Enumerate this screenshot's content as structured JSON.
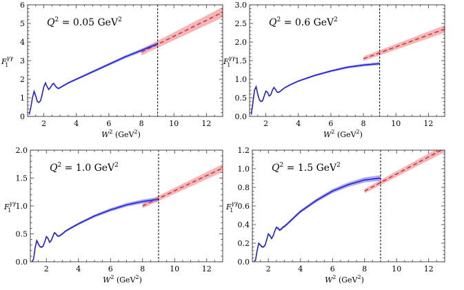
{
  "chart_data": [
    {
      "type": "line",
      "panel_label": "Q² = 0.05 GeV²",
      "label_parts": {
        "q": "Q",
        "sup": "2",
        "value": " = 0.05 GeV",
        "sup2": "2"
      },
      "xlabel": {
        "w": "W",
        "sup": "2",
        "rest": " (GeV",
        "sup2": "2",
        "close": ")"
      },
      "ylabel": {
        "f": "F",
        "sub": "1",
        "sup": "γγ"
      },
      "xlim": [
        1,
        13
      ],
      "ylim": [
        0,
        6
      ],
      "xticks": [
        2,
        4,
        6,
        8,
        10,
        12
      ],
      "yticks": [
        0,
        1,
        2,
        3,
        4,
        5,
        6
      ],
      "ytick_labels": [
        "0",
        "1",
        "2",
        "3",
        "4",
        "5",
        "6"
      ],
      "threshold_x": 9,
      "resonance_region": {
        "x": [
          1.1,
          1.2,
          1.3,
          1.4,
          1.5,
          1.6,
          1.7,
          1.8,
          1.9,
          2.0,
          2.1,
          2.2,
          2.3,
          2.4,
          2.5,
          2.6,
          2.7,
          2.8,
          2.9,
          3.0,
          3.2,
          3.5,
          4.0,
          5.0,
          6.0,
          7.0,
          8.0,
          9.0
        ],
        "y": [
          0.1,
          0.5,
          1.0,
          1.35,
          1.1,
          0.8,
          0.75,
          0.85,
          1.2,
          1.6,
          1.8,
          1.6,
          1.45,
          1.55,
          1.7,
          1.78,
          1.65,
          1.55,
          1.5,
          1.55,
          1.65,
          1.8,
          2.0,
          2.4,
          2.8,
          3.2,
          3.55,
          3.9
        ],
        "band_halfwidth": 0.1
      },
      "regge_fit": {
        "x": [
          8,
          13
        ],
        "y": [
          3.45,
          5.6
        ],
        "band_halfwidth": 0.28
      }
    },
    {
      "type": "line",
      "panel_label": "Q² = 0.6 GeV²",
      "label_parts": {
        "q": "Q",
        "sup": "2",
        "value": " = 0.6 GeV",
        "sup2": "2"
      },
      "xlabel": {
        "w": "W",
        "sup": "2",
        "rest": " (GeV",
        "sup2": "2",
        "close": ")"
      },
      "ylabel": {
        "f": "F",
        "sub": "1",
        "sup": "γγ"
      },
      "xlim": [
        1,
        13
      ],
      "ylim": [
        0,
        3
      ],
      "xticks": [
        2,
        4,
        6,
        8,
        10,
        12
      ],
      "yticks": [
        0,
        0.5,
        1,
        1.5,
        2,
        2.5,
        3
      ],
      "ytick_labels": [
        "0.0",
        "0.5",
        "1.0",
        "1.5",
        "2.0",
        "2.5",
        "3.0"
      ],
      "threshold_x": 9,
      "resonance_region": {
        "x": [
          1.1,
          1.2,
          1.3,
          1.4,
          1.5,
          1.6,
          1.7,
          1.8,
          1.9,
          2.0,
          2.1,
          2.2,
          2.3,
          2.4,
          2.5,
          2.6,
          2.7,
          2.8,
          2.9,
          3.0,
          3.2,
          3.5,
          4.0,
          5.0,
          6.0,
          7.0,
          8.0,
          9.0
        ],
        "y": [
          0.05,
          0.35,
          0.7,
          0.8,
          0.6,
          0.45,
          0.4,
          0.42,
          0.55,
          0.68,
          0.65,
          0.55,
          0.58,
          0.7,
          0.78,
          0.72,
          0.65,
          0.65,
          0.68,
          0.72,
          0.78,
          0.85,
          0.95,
          1.1,
          1.22,
          1.32,
          1.38,
          1.42
        ],
        "band_halfwidth": 0.04
      },
      "regge_fit": {
        "x": [
          8,
          13
        ],
        "y": [
          1.55,
          2.35
        ],
        "band_halfwidth": 0.1
      }
    },
    {
      "type": "line",
      "panel_label": "Q² = 1.0 GeV²",
      "label_parts": {
        "q": "Q",
        "sup": "2",
        "value": " = 1.0 GeV",
        "sup2": "2"
      },
      "xlabel": {
        "w": "W",
        "sup": "2",
        "rest": " (GeV",
        "sup2": "2",
        "close": ")"
      },
      "ylabel": {
        "f": "F",
        "sub": "1",
        "sup": "γγ"
      },
      "xlim": [
        1,
        13
      ],
      "ylim": [
        0,
        2
      ],
      "xticks": [
        2,
        4,
        6,
        8,
        10,
        12
      ],
      "yticks": [
        0,
        0.5,
        1,
        1.5,
        2
      ],
      "ytick_labels": [
        "0.0",
        "0.5",
        "1.0",
        "1.5",
        "2.0"
      ],
      "threshold_x": 9,
      "resonance_region": {
        "x": [
          1.1,
          1.2,
          1.3,
          1.4,
          1.5,
          1.6,
          1.7,
          1.8,
          1.9,
          2.0,
          2.1,
          2.2,
          2.3,
          2.4,
          2.5,
          2.6,
          2.7,
          2.8,
          2.9,
          3.0,
          3.2,
          3.5,
          4.0,
          5.0,
          6.0,
          7.0,
          8.0,
          9.0
        ],
        "y": [
          0.0,
          0.05,
          0.25,
          0.38,
          0.32,
          0.27,
          0.26,
          0.28,
          0.36,
          0.45,
          0.42,
          0.35,
          0.38,
          0.45,
          0.52,
          0.5,
          0.46,
          0.46,
          0.48,
          0.5,
          0.55,
          0.6,
          0.68,
          0.82,
          0.93,
          1.02,
          1.08,
          1.12
        ],
        "band_halfwidth": 0.04
      },
      "regge_fit": {
        "x": [
          8,
          13
        ],
        "y": [
          1.0,
          1.68
        ],
        "band_halfwidth": 0.07
      }
    },
    {
      "type": "line",
      "panel_label": "Q² = 1.5 GeV²",
      "label_parts": {
        "q": "Q",
        "sup": "2",
        "value": " = 1.5 GeV",
        "sup2": "2"
      },
      "xlabel": {
        "w": "W",
        "sup": "2",
        "rest": " (GeV",
        "sup2": "2",
        "close": ")"
      },
      "ylabel": {
        "f": "F",
        "sub": "1",
        "sup": "γγ"
      },
      "xlim": [
        1,
        13
      ],
      "ylim": [
        0,
        1.2
      ],
      "xticks": [
        2,
        4,
        6,
        8,
        10,
        12
      ],
      "yticks": [
        0,
        0.2,
        0.4,
        0.6,
        0.8,
        1.0,
        1.2
      ],
      "ytick_labels": [
        "0.0",
        "0.2",
        "0.4",
        "0.6",
        "0.8",
        "1.0",
        "1.2"
      ],
      "threshold_x": 9,
      "resonance_region": {
        "x": [
          1.1,
          1.2,
          1.3,
          1.4,
          1.5,
          1.6,
          1.7,
          1.8,
          1.9,
          2.0,
          2.1,
          2.2,
          2.3,
          2.4,
          2.5,
          2.6,
          2.7,
          2.8,
          2.9,
          3.0,
          3.2,
          3.5,
          4.0,
          5.0,
          6.0,
          7.0,
          8.0,
          9.0
        ],
        "y": [
          0.0,
          0.02,
          0.12,
          0.2,
          0.18,
          0.16,
          0.16,
          0.18,
          0.24,
          0.3,
          0.28,
          0.25,
          0.28,
          0.33,
          0.37,
          0.36,
          0.34,
          0.35,
          0.37,
          0.38,
          0.41,
          0.46,
          0.54,
          0.66,
          0.76,
          0.83,
          0.88,
          0.9
        ],
        "band_halfwidth": 0.03
      },
      "regge_fit": {
        "x": [
          8,
          13
        ],
        "y": [
          0.76,
          1.22
        ],
        "band_halfwidth": 0.04
      }
    }
  ],
  "colors": {
    "resonance_line": "#1f1fd6",
    "resonance_band": "#8c8cf0",
    "regge_line": "#d21a1a",
    "regge_band": "#f2a3a3",
    "threshold": "#000000"
  }
}
